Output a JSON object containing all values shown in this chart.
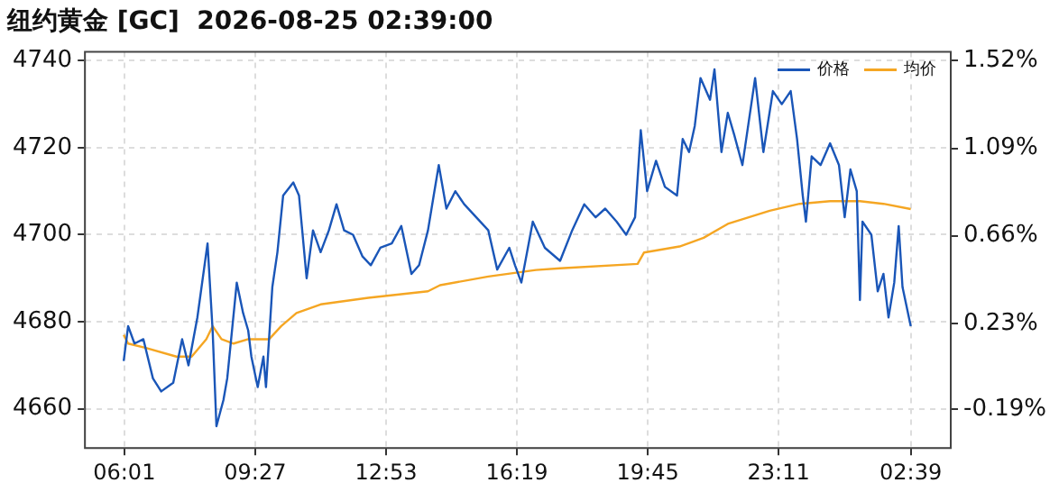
{
  "chart_data": {
    "type": "line",
    "title": "纽约黄金 [GC]  2026-08-25 02:39:00",
    "xlim": [
      "2026-08-24T04:59",
      "2026-08-25T03:42"
    ],
    "xticks": [
      {
        "value": "2026-08-24T06:01",
        "label": "06:01"
      },
      {
        "value": "2026-08-24T09:27",
        "label": "09:27"
      },
      {
        "value": "2026-08-24T12:53",
        "label": "12:53"
      },
      {
        "value": "2026-08-24T16:19",
        "label": "16:19"
      },
      {
        "value": "2026-08-24T19:45",
        "label": "19:45"
      },
      {
        "value": "2026-08-24T23:11",
        "label": "23:11"
      },
      {
        "value": "2026-08-25T02:39",
        "label": "02:39"
      }
    ],
    "ylim": [
      4651,
      4742
    ],
    "yticks": [
      4660,
      4680,
      4700,
      4720,
      4740
    ],
    "y2lim": [
      -0.382,
      1.563
    ],
    "y2ticks": [
      {
        "value": -0.19,
        "label": "-0.19%"
      },
      {
        "value": 0.23,
        "label": "0.23%"
      },
      {
        "value": 0.66,
        "label": "0.66%"
      },
      {
        "value": 1.09,
        "label": "1.09%"
      },
      {
        "value": 1.52,
        "label": "1.52%"
      }
    ],
    "grid": true,
    "legend": "top right",
    "marker": "none",
    "series": [
      {
        "name": "价格",
        "color": "#1a56b8",
        "x": [
          "2026-08-24T06:00",
          "2026-08-24T06:07",
          "2026-08-24T06:17",
          "2026-08-24T06:31",
          "2026-08-24T06:46",
          "2026-08-24T06:59",
          "2026-08-24T07:18",
          "2026-08-24T07:32",
          "2026-08-24T07:42",
          "2026-08-24T07:56",
          "2026-08-24T08:12",
          "2026-08-24T08:20",
          "2026-08-24T08:26",
          "2026-08-24T08:37",
          "2026-08-24T08:43",
          "2026-08-24T08:58",
          "2026-08-24T09:08",
          "2026-08-24T09:16",
          "2026-08-24T09:21",
          "2026-08-24T09:31",
          "2026-08-24T09:40",
          "2026-08-24T09:44",
          "2026-08-24T09:54",
          "2026-08-24T10:02",
          "2026-08-24T10:11",
          "2026-08-24T10:27",
          "2026-08-24T10:36",
          "2026-08-24T10:48",
          "2026-08-24T10:58",
          "2026-08-24T11:10",
          "2026-08-24T11:23",
          "2026-08-24T11:35",
          "2026-08-24T11:47",
          "2026-08-24T12:01",
          "2026-08-24T12:16",
          "2026-08-24T12:29",
          "2026-08-24T12:44",
          "2026-08-24T13:02",
          "2026-08-24T13:17",
          "2026-08-24T13:33",
          "2026-08-24T13:45",
          "2026-08-24T13:59",
          "2026-08-24T14:08",
          "2026-08-24T14:16",
          "2026-08-24T14:28",
          "2026-08-24T14:42",
          "2026-08-24T14:56",
          "2026-08-24T15:15",
          "2026-08-24T15:34",
          "2026-08-24T15:48",
          "2026-08-24T16:07",
          "2026-08-24T16:16",
          "2026-08-24T16:26",
          "2026-08-24T16:44",
          "2026-08-24T17:03",
          "2026-08-24T17:27",
          "2026-08-24T17:46",
          "2026-08-24T18:05",
          "2026-08-24T18:23",
          "2026-08-24T18:38",
          "2026-08-24T18:56",
          "2026-08-24T19:11",
          "2026-08-24T19:25",
          "2026-08-24T19:34",
          "2026-08-24T19:44",
          "2026-08-24T19:58",
          "2026-08-24T20:12",
          "2026-08-24T20:31",
          "2026-08-24T20:40",
          "2026-08-24T20:50",
          "2026-08-24T20:59",
          "2026-08-24T21:08",
          "2026-08-24T21:23",
          "2026-08-24T21:30",
          "2026-08-24T21:41",
          "2026-08-24T21:51",
          "2026-08-24T22:01",
          "2026-08-24T22:14",
          "2026-08-24T22:34",
          "2026-08-24T22:47",
          "2026-08-24T23:02",
          "2026-08-24T23:16",
          "2026-08-24T23:30",
          "2026-08-24T23:40",
          "2026-08-24T23:49",
          "2026-08-24T23:54",
          "2026-08-25T00:03",
          "2026-08-25T00:17",
          "2026-08-25T00:32",
          "2026-08-25T00:46",
          "2026-08-25T00:55",
          "2026-08-25T01:04",
          "2026-08-25T01:14",
          "2026-08-25T01:19",
          "2026-08-25T01:23",
          "2026-08-25T01:37",
          "2026-08-25T01:47",
          "2026-08-25T01:56",
          "2026-08-25T02:04",
          "2026-08-25T02:13",
          "2026-08-25T02:20",
          "2026-08-25T02:26",
          "2026-08-25T02:39"
        ],
        "values": [
          4671,
          4679,
          4675,
          4676,
          4667,
          4664,
          4666,
          4676,
          4670,
          4681,
          4698,
          4678,
          4656,
          4662,
          4667,
          4689,
          4682,
          4678,
          4672,
          4665,
          4672,
          4665,
          4688,
          4696,
          4709,
          4712,
          4709,
          4690,
          4701,
          4696,
          4701,
          4707,
          4701,
          4700,
          4695,
          4693,
          4697,
          4698,
          4702,
          4691,
          4693,
          4701,
          4709,
          4716,
          4706,
          4710,
          4707,
          4704,
          4701,
          4692,
          4697,
          4693,
          4689,
          4703,
          4697,
          4694,
          4701,
          4707,
          4704,
          4706,
          4703,
          4700,
          4704,
          4724,
          4710,
          4717,
          4711,
          4709,
          4722,
          4719,
          4725,
          4736,
          4731,
          4738,
          4719,
          4728,
          4723,
          4716,
          4736,
          4719,
          4733,
          4730,
          4733,
          4722,
          4709,
          4703,
          4718,
          4716,
          4721,
          4716,
          4704,
          4715,
          4710,
          4685,
          4703,
          4700,
          4687,
          4691,
          4681,
          4689,
          4702,
          4688,
          4679
        ]
      },
      {
        "name": "均价",
        "color": "#f5a623",
        "x": [
          "2026-08-24T06:00",
          "2026-08-24T06:07",
          "2026-08-24T06:35",
          "2026-08-24T07:23",
          "2026-08-24T07:47",
          "2026-08-24T08:10",
          "2026-08-24T08:20",
          "2026-08-24T08:34",
          "2026-08-24T08:53",
          "2026-08-24T09:16",
          "2026-08-24T09:49",
          "2026-08-24T10:08",
          "2026-08-24T10:32",
          "2026-08-24T11:10",
          "2026-08-24T12:25",
          "2026-08-24T13:59",
          "2026-08-24T14:18",
          "2026-08-24T15:34",
          "2026-08-24T16:49",
          "2026-08-24T17:27",
          "2026-08-24T19:29",
          "2026-08-24T19:39",
          "2026-08-24T20:35",
          "2026-08-24T21:13",
          "2026-08-24T21:51",
          "2026-08-24T22:57",
          "2026-08-24T23:44",
          "2026-08-25T00:32",
          "2026-08-25T01:19",
          "2026-08-25T01:56",
          "2026-08-25T02:39"
        ],
        "values": [
          4677,
          4675,
          4674,
          4672,
          4672,
          4676,
          4679,
          4676,
          4675,
          4676,
          4676,
          4679,
          4682,
          4684,
          4685.5,
          4687,
          4688.4,
          4690.4,
          4691.9,
          4692.3,
          4693.3,
          4695.9,
          4697.3,
          4699.3,
          4702.5,
          4705.5,
          4707.1,
          4707.7,
          4707.7,
          4707.1,
          4705.9
        ]
      }
    ]
  }
}
